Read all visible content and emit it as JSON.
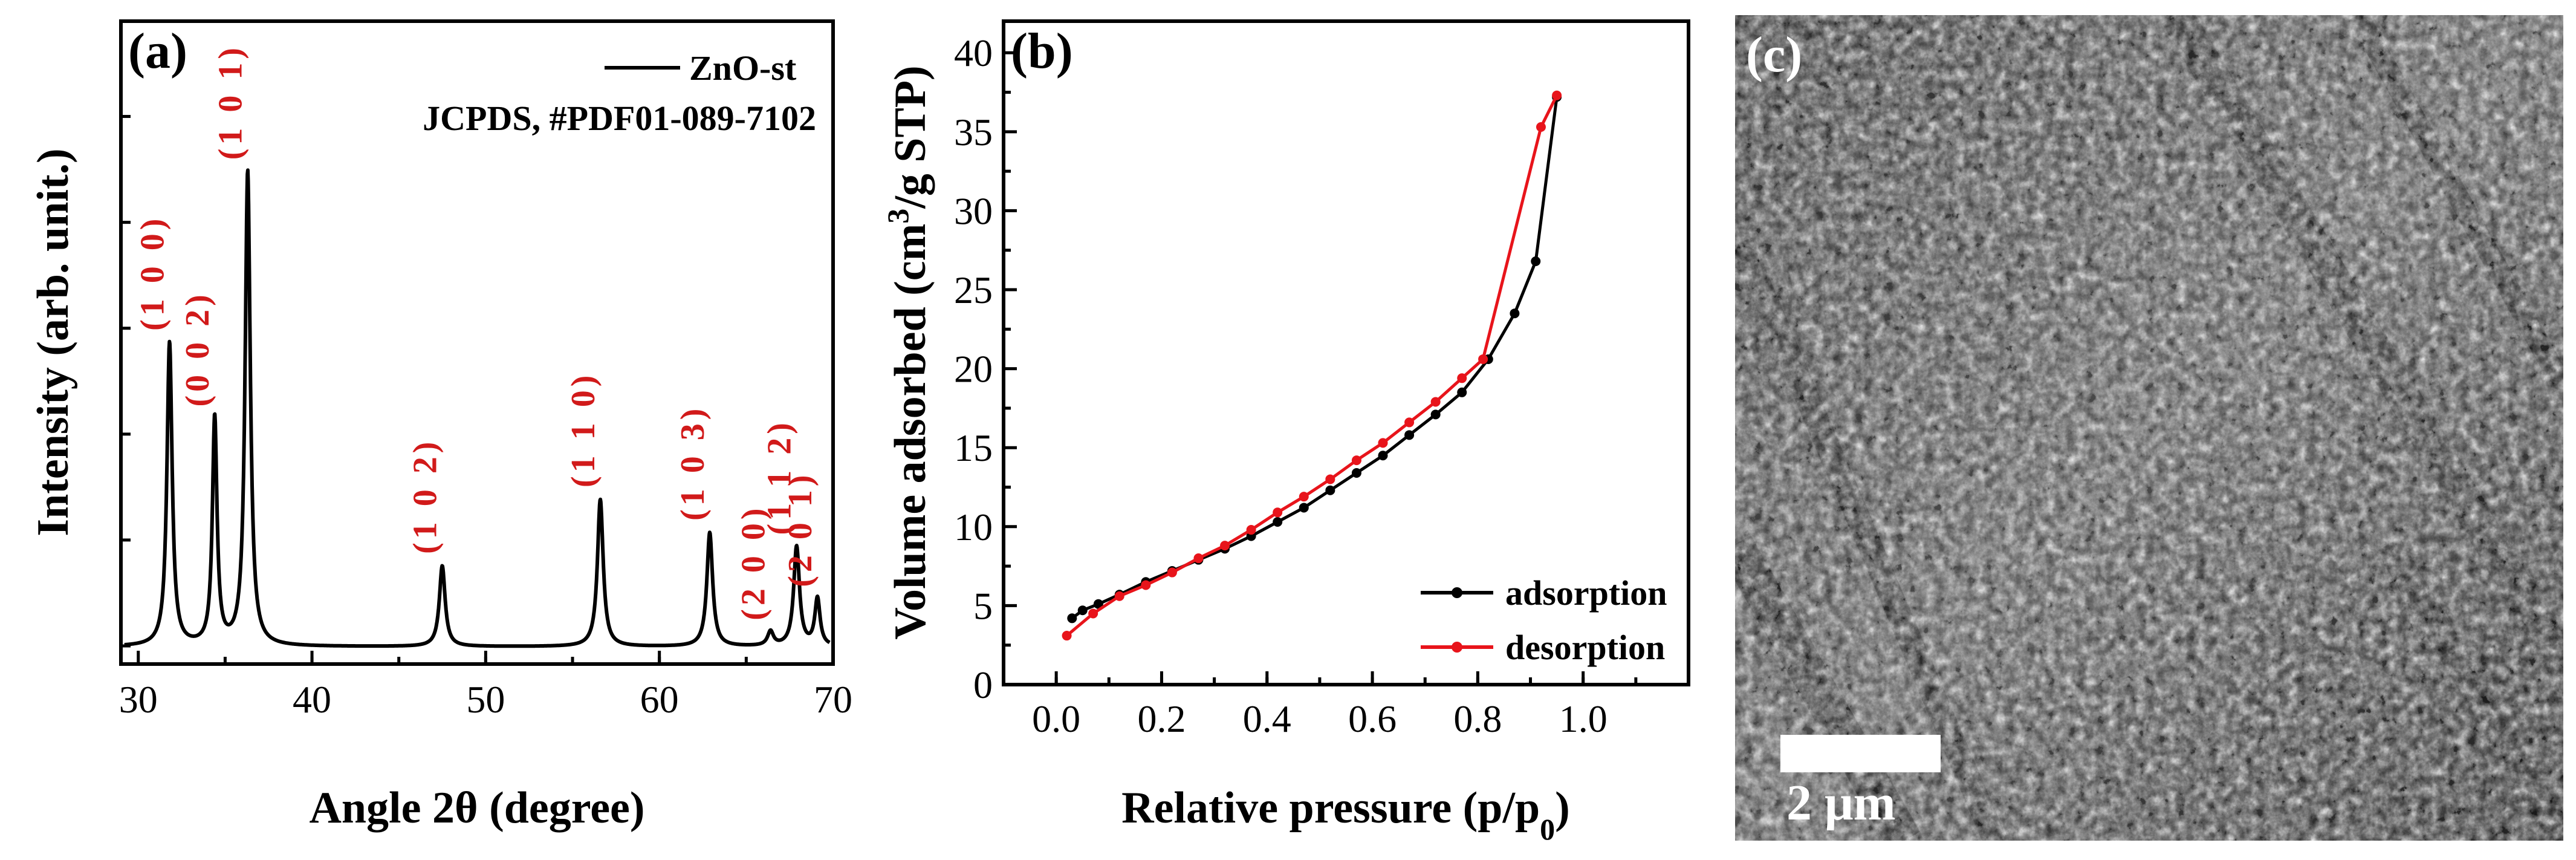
{
  "colors": {
    "black": "#000000",
    "red": "#e8141b",
    "hkl": "#d11a1a"
  },
  "chart_data": [
    {
      "type": "line",
      "panel_label": "(a)",
      "xlabel": "Angle 2θ (degree)",
      "ylabel": "Intensity (arb. unit.)",
      "xlim": [
        29,
        70
      ],
      "ylim": [
        0,
        1.0
      ],
      "xticks": [
        "30",
        "40",
        "50",
        "60",
        "70"
      ],
      "legend": {
        "entry": "ZnO-st",
        "reference": "JCPDS, #PDF01-089-7102",
        "location": "top-right"
      },
      "baseline": 0.02,
      "peaks": [
        {
          "label": "(1 0 0)",
          "x": 31.8,
          "height": 0.64,
          "width": 0.18
        },
        {
          "label": "(0 0 2)",
          "x": 34.4,
          "height": 0.48,
          "width": 0.16
        },
        {
          "label": "(1 0 1)",
          "x": 36.3,
          "height": 1.0,
          "width": 0.18
        },
        {
          "label": "(1 0 2)",
          "x": 47.5,
          "height": 0.17,
          "width": 0.2
        },
        {
          "label": "(1 1 0)",
          "x": 56.6,
          "height": 0.31,
          "width": 0.2
        },
        {
          "label": "(1 0 3)",
          "x": 62.9,
          "height": 0.24,
          "width": 0.2
        },
        {
          "label": "(2 0 0)",
          "x": 66.4,
          "height": 0.03,
          "width": 0.2
        },
        {
          "label": "(1 1 2)",
          "x": 67.9,
          "height": 0.21,
          "width": 0.2
        },
        {
          "label": "(2 0 1)",
          "x": 69.1,
          "height": 0.1,
          "width": 0.18
        }
      ]
    },
    {
      "type": "line",
      "panel_label": "(b)",
      "xlabel": "Relative pressure (p/p0)",
      "ylabel": "Volume adsorbed (cm3/g STP)",
      "xlim": [
        -0.1,
        1.2
      ],
      "ylim": [
        0,
        42
      ],
      "xticks": [
        0.0,
        0.2,
        0.4,
        0.6,
        0.8,
        1.0
      ],
      "yticks": [
        0,
        5,
        10,
        15,
        20,
        25,
        30,
        35,
        40
      ],
      "legend_location": "bottom-right",
      "series": [
        {
          "name": "adsorption",
          "color": "#000000",
          "x": [
            0.03,
            0.05,
            0.08,
            0.12,
            0.17,
            0.22,
            0.27,
            0.32,
            0.37,
            0.42,
            0.47,
            0.52,
            0.57,
            0.62,
            0.67,
            0.72,
            0.77,
            0.82,
            0.87,
            0.91,
            0.95
          ],
          "y": [
            4.2,
            4.7,
            5.1,
            5.7,
            6.5,
            7.2,
            7.9,
            8.6,
            9.4,
            10.3,
            11.2,
            12.3,
            13.4,
            14.5,
            15.8,
            17.1,
            18.5,
            20.6,
            23.5,
            26.8,
            37.2
          ]
        },
        {
          "name": "desorption",
          "color": "#e8141b",
          "x": [
            0.02,
            0.07,
            0.12,
            0.17,
            0.22,
            0.27,
            0.32,
            0.37,
            0.42,
            0.47,
            0.52,
            0.57,
            0.62,
            0.67,
            0.72,
            0.77,
            0.81,
            0.92,
            0.95
          ],
          "y": [
            3.1,
            4.5,
            5.6,
            6.3,
            7.1,
            8.0,
            8.8,
            9.8,
            10.9,
            11.9,
            13.0,
            14.2,
            15.3,
            16.6,
            17.9,
            19.4,
            20.6,
            35.3,
            37.3
          ]
        }
      ]
    }
  ],
  "panel_c": {
    "label": "(c)",
    "scale_bar": "2 μm"
  }
}
